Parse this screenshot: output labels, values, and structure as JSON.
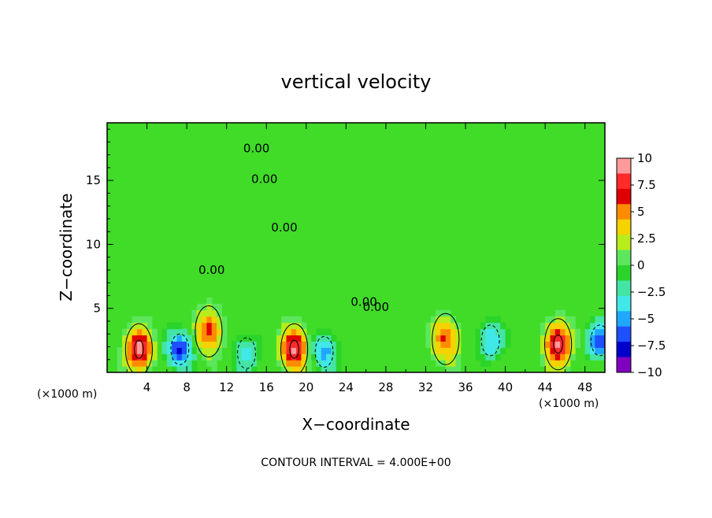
{
  "chart_data": {
    "type": "heatmap",
    "title": "vertical velocity",
    "xlabel": "X−coordinate",
    "ylabel": "Z−coordinate",
    "x_unit_left": "(×1000 m)",
    "x_unit_right": "(×1000 m)",
    "xlim": [
      0,
      50
    ],
    "ylim": [
      0,
      19.5
    ],
    "x_ticks": [
      "4",
      "8",
      "12",
      "16",
      "20",
      "24",
      "28",
      "32",
      "36",
      "40",
      "44",
      "48"
    ],
    "x_tick_values": [
      4,
      8,
      12,
      16,
      20,
      24,
      28,
      32,
      36,
      40,
      44,
      48
    ],
    "y_ticks": [
      "5",
      "10",
      "15"
    ],
    "y_tick_values": [
      5,
      10,
      15
    ],
    "colorbar": {
      "range": [
        -10,
        10
      ],
      "labels": [
        "10",
        "7.5",
        "5",
        "2.5",
        "0",
        "−2.5",
        "−5",
        "−7.5",
        "−10"
      ],
      "label_values": [
        10,
        7.5,
        5,
        2.5,
        0,
        -2.5,
        -5,
        -7.5,
        -10
      ],
      "colors": [
        "#ff9a9a",
        "#ff2a2a",
        "#e00000",
        "#ff8c00",
        "#f5d200",
        "#b8ec1a",
        "#5ce65c",
        "#2ad42a",
        "#44e4a4",
        "#40e8e8",
        "#20a8ff",
        "#1e50ff",
        "#0000cc",
        "#8000c0"
      ]
    },
    "contour_labels": [
      {
        "text": "0.00",
        "x": 15.0,
        "y": 17.2
      },
      {
        "text": "0.00",
        "x": 15.8,
        "y": 14.8
      },
      {
        "text": "0.00",
        "x": 17.8,
        "y": 11.0
      },
      {
        "text": "0.00",
        "x": 10.5,
        "y": 7.7
      },
      {
        "text": "0.00",
        "x": 25.8,
        "y": 5.2
      },
      {
        "text": "0.00",
        "x": 27.0,
        "y": 4.8
      }
    ],
    "features": [
      {
        "kind": "updraft",
        "x": 3.2,
        "z": 1.8,
        "peak": 9.0
      },
      {
        "kind": "downdraft",
        "x": 7.3,
        "z": 1.8,
        "peak": -7.5
      },
      {
        "kind": "updraft",
        "x": 10.2,
        "z": 3.2,
        "peak": 6.5
      },
      {
        "kind": "downdraft",
        "x": 14.0,
        "z": 1.5,
        "peak": -3.5
      },
      {
        "kind": "updraft",
        "x": 18.8,
        "z": 1.8,
        "peak": 9.0
      },
      {
        "kind": "downdraft",
        "x": 21.8,
        "z": 1.6,
        "peak": -5.0
      },
      {
        "kind": "updraft",
        "x": 34.0,
        "z": 2.6,
        "peak": 6.0
      },
      {
        "kind": "downdraft",
        "x": 38.5,
        "z": 2.5,
        "peak": -4.5
      },
      {
        "kind": "updraft",
        "x": 45.3,
        "z": 2.2,
        "peak": 9.0
      },
      {
        "kind": "downdraft",
        "x": 49.5,
        "z": 2.5,
        "peak": -7.0
      }
    ],
    "footnote": "CONTOUR INTERVAL = 4.000E+00"
  }
}
